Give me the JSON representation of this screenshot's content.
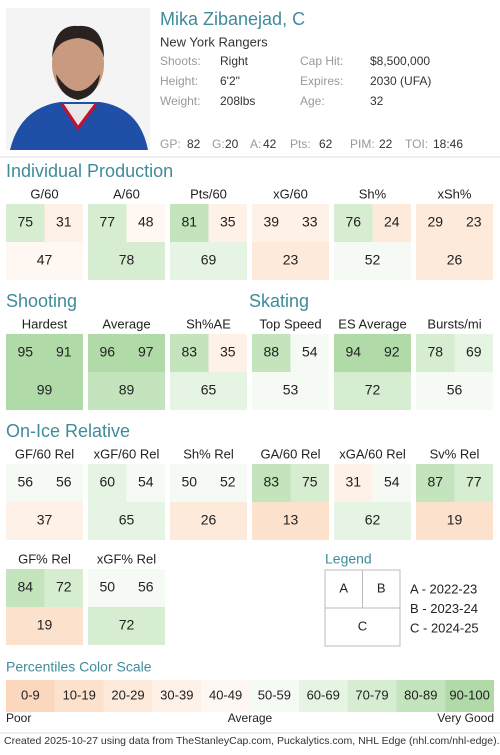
{
  "header": {
    "name": "Mika Zibanejad, C",
    "team": "New York Rangers",
    "info": [
      {
        "label": "Shoots:",
        "value": "Right"
      },
      {
        "label": "Cap Hit:",
        "value": "$8,500,000"
      },
      {
        "label": "Height:",
        "value": "6'2\""
      },
      {
        "label": "Expires:",
        "value": "2030 (UFA)"
      },
      {
        "label": "Weight:",
        "value": "208lbs"
      },
      {
        "label": "Age:",
        "value": "32"
      }
    ],
    "stats": [
      {
        "label": "GP:",
        "value": 82
      },
      {
        "label": "G:",
        "value": 20
      },
      {
        "label": "A:",
        "value": 42
      },
      {
        "label": "Pts:",
        "value": 62
      },
      {
        "label": "PIM:",
        "value": 22
      },
      {
        "label": "TOI:",
        "value": "18:46"
      }
    ]
  },
  "sections": [
    {
      "title": "Individual Production",
      "metrics": [
        {
          "label": "G/60",
          "values": [
            75,
            31,
            47
          ]
        },
        {
          "label": "A/60",
          "values": [
            77,
            48,
            78
          ]
        },
        {
          "label": "Pts/60",
          "values": [
            81,
            35,
            69
          ]
        },
        {
          "label": "xG/60",
          "values": [
            39,
            33,
            23
          ]
        },
        {
          "label": "Sh%",
          "values": [
            76,
            24,
            52
          ]
        },
        {
          "label": "xSh%",
          "values": [
            29,
            23,
            26
          ]
        }
      ]
    },
    {
      "title": "Shooting",
      "metrics": [
        {
          "label": "Hardest",
          "values": [
            95,
            91,
            99
          ]
        },
        {
          "label": "Average",
          "values": [
            96,
            97,
            89
          ]
        },
        {
          "label": "Sh%AE",
          "values": [
            83,
            35,
            65
          ]
        }
      ]
    },
    {
      "title": "Skating",
      "metrics": [
        {
          "label": "Top Speed",
          "values": [
            88,
            54,
            53
          ]
        },
        {
          "label": "ES Average",
          "values": [
            94,
            92,
            72
          ]
        },
        {
          "label": "Bursts/mi",
          "values": [
            78,
            69,
            56
          ]
        }
      ]
    },
    {
      "title": "On-Ice Relative",
      "metrics": [
        {
          "label": "GF/60 Rel",
          "values": [
            56,
            56,
            37
          ]
        },
        {
          "label": "xGF/60 Rel",
          "values": [
            60,
            54,
            65
          ]
        },
        {
          "label": "Sh% Rel",
          "values": [
            50,
            52,
            26
          ]
        },
        {
          "label": "GA/60 Rel",
          "values": [
            83,
            75,
            13
          ]
        },
        {
          "label": "xGA/60 Rel",
          "values": [
            31,
            54,
            62
          ]
        },
        {
          "label": "Sv% Rel",
          "values": [
            87,
            77,
            19
          ]
        },
        {
          "label": "GF% Rel",
          "values": [
            84,
            72,
            19
          ]
        },
        {
          "label": "xGF% Rel",
          "values": [
            50,
            56,
            72
          ]
        }
      ]
    }
  ],
  "legend": {
    "title": "Legend",
    "cells": [
      "A",
      "B",
      "C"
    ],
    "entries": [
      "A - 2022-23",
      "B - 2023-24",
      "C - 2024-25"
    ]
  },
  "scale": {
    "title": "Percentiles Color Scale",
    "bins": [
      {
        "label": "0-9",
        "color": "#fbd7bd"
      },
      {
        "label": "10-19",
        "color": "#fce1cc"
      },
      {
        "label": "20-29",
        "color": "#fdeadb"
      },
      {
        "label": "30-39",
        "color": "#fdf1e8"
      },
      {
        "label": "40-49",
        "color": "#fef7f2"
      },
      {
        "label": "50-59",
        "color": "#f5faf4"
      },
      {
        "label": "60-69",
        "color": "#e6f4e3"
      },
      {
        "label": "70-79",
        "color": "#d6edd2"
      },
      {
        "label": "80-89",
        "color": "#c3e4bd"
      },
      {
        "label": "90-100",
        "color": "#b0dba9"
      }
    ],
    "low": "Poor",
    "mid": "Average",
    "high": "Very Good"
  },
  "footer": "Created 2025-10-27 using data from TheStanleyCap.com, Puckalytics.com, NHL Edge (nhl.com/nhl-edge)."
}
